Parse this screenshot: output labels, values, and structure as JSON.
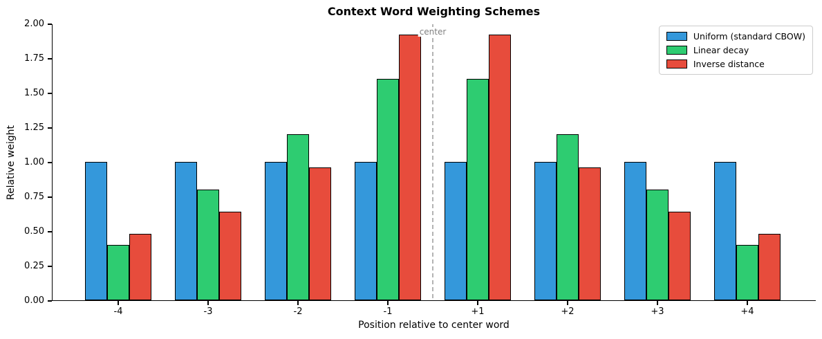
{
  "chart_data": {
    "type": "bar",
    "title": "Context Word Weighting Schemes",
    "xlabel": "Position relative to center word",
    "ylabel": "Relative weight",
    "categories": [
      "-4",
      "-3",
      "-2",
      "-1",
      "+1",
      "+2",
      "+3",
      "+4"
    ],
    "series": [
      {
        "name": "Uniform (standard CBOW)",
        "color": "#3498db",
        "values": [
          1.0,
          1.0,
          1.0,
          1.0,
          1.0,
          1.0,
          1.0,
          1.0
        ]
      },
      {
        "name": "Linear decay",
        "color": "#2ecc71",
        "values": [
          0.4,
          0.8,
          1.2,
          1.6,
          1.6,
          1.2,
          0.8,
          0.4
        ]
      },
      {
        "name": "Inverse distance",
        "color": "#e74c3c",
        "values": [
          0.48,
          0.64,
          0.96,
          1.92,
          1.92,
          0.96,
          0.64,
          0.48
        ]
      }
    ],
    "ylim": [
      0,
      2.0
    ],
    "yticks": [
      "0.00",
      "0.25",
      "0.50",
      "0.75",
      "1.00",
      "1.25",
      "1.50",
      "1.75",
      "2.00"
    ],
    "bar_edge_color": "#000000",
    "grid": false,
    "legend_position": "upper right",
    "annotation": {
      "label": "center",
      "color": "#808080",
      "line_color": "#b3b3b3",
      "line_style": "dashed",
      "position_between": [
        "-1",
        "+1"
      ]
    }
  }
}
